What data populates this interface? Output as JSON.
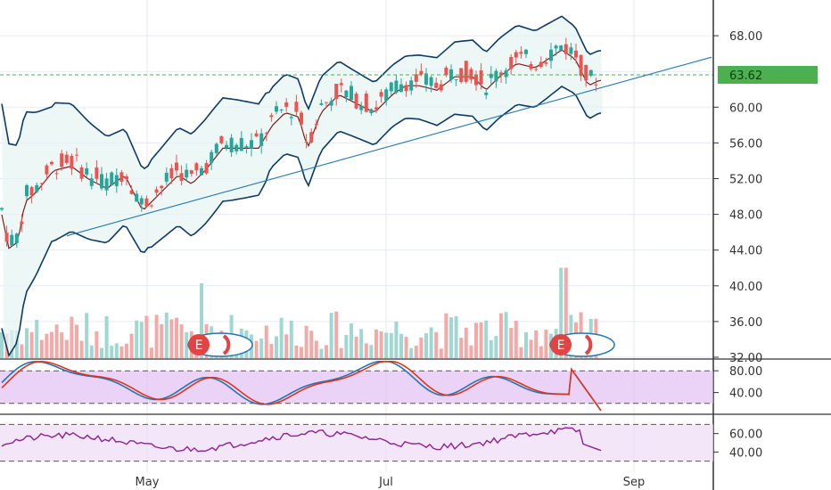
{
  "chart_data": [
    {
      "type": "candlestick",
      "panel": "price",
      "title": "",
      "y_ticks": [
        32.0,
        36.0,
        40.0,
        44.0,
        48.0,
        52.0,
        56.0,
        60.0,
        64.0,
        68.0
      ],
      "y_tick_labels": [
        "32.00",
        "36.00",
        "40.00",
        "44.00",
        "48.00",
        "52.00",
        "56.00",
        "60.00",
        "64.00",
        "68.00"
      ],
      "ylim": [
        31.9,
        72.0
      ],
      "last_price": 63.62,
      "last_price_label": "63.62",
      "x_ticks": [
        "May",
        "Jul",
        "Sep"
      ],
      "grid": true,
      "colors": {
        "up": "#26a69a",
        "down": "#ef5350",
        "band": "#0d3b66",
        "ma": "#7b1e1e",
        "trend": "#1f77b4",
        "price_tag": "#4caf50"
      },
      "earnings_markers": [
        {
          "label": "E"
        },
        {
          "label": "E"
        }
      ],
      "trendline": [
        {
          "x": 1,
          "y": 51.4
        },
        {
          "x": 38,
          "y": 57.6
        }
      ]
    },
    {
      "type": "line",
      "panel": "stochastic",
      "series": [
        {
          "color": "#1f77b4"
        },
        {
          "color": "#e0341c"
        }
      ],
      "y_tick_labels": [
        "80.00",
        "40.00"
      ],
      "levels": [
        80,
        20
      ],
      "ylim": [
        0,
        100
      ]
    },
    {
      "type": "line",
      "panel": "rsi",
      "series": [
        {
          "color": "#8e2094"
        }
      ],
      "y_tick_labels": [
        "60.00",
        "40.00"
      ],
      "levels": [
        70,
        30
      ],
      "ylim": [
        20,
        80
      ]
    }
  ]
}
